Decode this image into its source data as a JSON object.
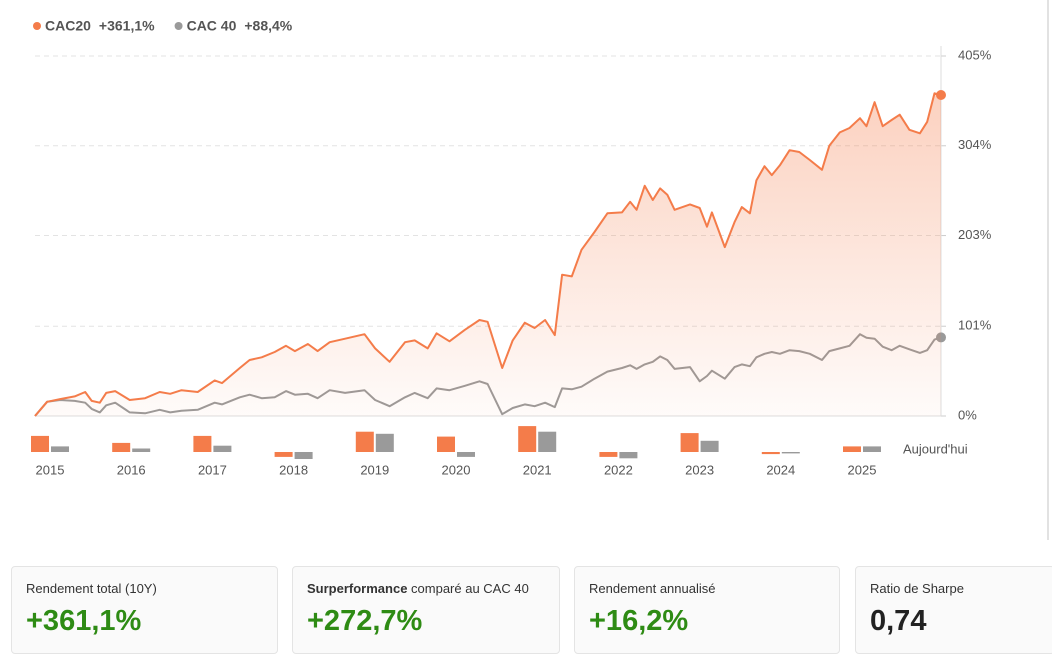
{
  "chart_data": {
    "type": "line",
    "xlim": [
      2015,
      2026.19
    ],
    "ylim": [
      0,
      405
    ],
    "yticks": [
      {
        "value": 0,
        "label": "0%"
      },
      {
        "value": 101,
        "label": "101%"
      },
      {
        "value": 203,
        "label": "203%"
      },
      {
        "value": 304,
        "label": "304%"
      },
      {
        "value": 405,
        "label": "405%"
      }
    ],
    "grid": true,
    "x": [
      2015.0,
      2015.15,
      2015.31,
      2015.49,
      2015.62,
      2015.7,
      2015.8,
      2015.88,
      2015.99,
      2016.17,
      2016.36,
      2016.54,
      2016.67,
      2016.81,
      2017.01,
      2017.22,
      2017.31,
      2017.53,
      2017.65,
      2017.8,
      2017.96,
      2018.1,
      2018.21,
      2018.37,
      2018.49,
      2018.64,
      2018.83,
      2019.07,
      2019.2,
      2019.38,
      2019.57,
      2019.69,
      2019.85,
      2019.96,
      2020.12,
      2020.31,
      2020.49,
      2020.59,
      2020.77,
      2020.9,
      2021.05,
      2021.17,
      2021.3,
      2021.42,
      2021.51,
      2021.63,
      2021.75,
      2021.91,
      2022.07,
      2022.25,
      2022.35,
      2022.43,
      2022.53,
      2022.63,
      2022.72,
      2022.81,
      2022.9,
      2023.09,
      2023.21,
      2023.3,
      2023.36,
      2023.52,
      2023.64,
      2023.73,
      2023.83,
      2023.91,
      2024.01,
      2024.1,
      2024.2,
      2024.32,
      2024.44,
      2024.57,
      2024.72,
      2024.81,
      2024.94,
      2025.06,
      2025.19,
      2025.27,
      2025.37,
      2025.47,
      2025.58,
      2025.68,
      2025.8,
      2025.93,
      2026.02,
      2026.11,
      2026.19
    ],
    "series": [
      {
        "name": "CAC20",
        "change_label": "+361,1%",
        "color": "#f47c4a",
        "fill": true,
        "values": [
          0,
          16,
          19,
          22,
          27,
          17,
          15,
          26,
          28,
          18,
          20,
          27,
          25,
          29,
          27,
          40,
          37,
          54,
          63,
          66,
          72,
          79,
          73,
          81,
          73,
          83,
          87,
          92,
          76,
          61,
          83,
          85,
          76,
          93,
          84,
          97,
          108,
          106,
          54,
          85,
          105,
          99,
          108,
          91,
          159,
          157,
          187,
          207,
          228,
          229,
          241,
          232,
          259,
          243,
          256,
          249,
          232,
          238,
          234,
          213,
          229,
          190,
          218,
          235,
          228,
          265,
          281,
          271,
          282,
          299,
          297,
          288,
          277,
          304,
          319,
          324,
          335,
          326,
          353,
          326,
          333,
          339,
          322,
          318,
          331,
          363,
          361.1
        ]
      },
      {
        "name": "CAC 40",
        "change_label": "+88,4%",
        "color": "#9a9a9a",
        "fill": false,
        "values": [
          0,
          16,
          18,
          17,
          15,
          8,
          4,
          12,
          15,
          4,
          3,
          7,
          4,
          6,
          7,
          15,
          13,
          21,
          24,
          20,
          21,
          28,
          24,
          25,
          20,
          29,
          26,
          29,
          18,
          11,
          21,
          26,
          20,
          31,
          29,
          34,
          39,
          36,
          2,
          9,
          13,
          11,
          15,
          10,
          31,
          30,
          33,
          42,
          50,
          54,
          57,
          53,
          58,
          61,
          67,
          63,
          53,
          55,
          39,
          45,
          51,
          42,
          55,
          58,
          56,
          66,
          70,
          72,
          70,
          74,
          73,
          70,
          63,
          73,
          76,
          79,
          92,
          88,
          87,
          78,
          74,
          79,
          75,
          71,
          74,
          86,
          88.4
        ]
      }
    ],
    "annual": {
      "type": "bar",
      "categories": [
        "2015",
        "2016",
        "2017",
        "2018",
        "2019",
        "2020",
        "2021",
        "2022",
        "2023",
        "2024",
        "2025"
      ],
      "series": [
        {
          "name": "CAC20",
          "color": "#f47c4a",
          "values": [
            23,
            13,
            23,
            -7,
            29,
            22,
            37,
            -7,
            27,
            -3,
            8
          ]
        },
        {
          "name": "CAC 40",
          "color": "#9a9a9a",
          "values": [
            8,
            5,
            9,
            -10,
            26,
            -7,
            29,
            -9,
            16,
            -2,
            8
          ]
        }
      ],
      "today_label": "Aujourd'hui"
    }
  },
  "stats": [
    {
      "label": "Rendement total (10Y)",
      "value": "+361,1%",
      "color": "#2e8b14"
    },
    {
      "label_bold": "Surperformance",
      "label": " comparé au CAC 40",
      "value": "+272,7%",
      "color": "#2e8b14"
    },
    {
      "label": "Rendement annualisé",
      "value": "+16,2%",
      "color": "#2e8b14"
    },
    {
      "label": "Ratio de Sharpe",
      "value": "0,74",
      "color": "#222"
    }
  ]
}
